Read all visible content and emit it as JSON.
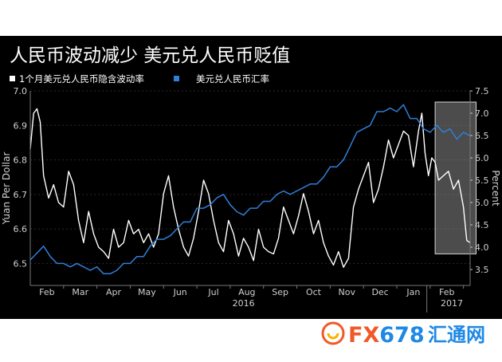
{
  "title": "人民币波动减少 美元兑人民币贬值",
  "watermark": {
    "brand": "FX678",
    "brand_cn": "汇通网",
    "colors": {
      "fx": "#f05a28",
      "num": "#1e88e5"
    }
  },
  "colors": {
    "background": "#000000",
    "volatility": "#ffffff",
    "rate": "#2f7fd8",
    "axis_text": "#cfcfcf",
    "highlight_fill": "#8a8a8a",
    "highlight_stroke": "#d8d8d8"
  },
  "chart_data": {
    "type": "line",
    "legend": [
      {
        "label": "1个月美元兑人民币隐含波动率",
        "marker": "white-square"
      },
      {
        "label": "美元兑人民币汇率",
        "marker": "blue-square"
      }
    ],
    "ylabel_left": "Yuan Per Dollar",
    "ylabel_right": "Percent",
    "y_left": {
      "range": [
        6.45,
        7.0
      ],
      "ticks": [
        "6.5",
        "6.6",
        "6.7",
        "6.8",
        "6.9",
        "7.0"
      ]
    },
    "y_right": {
      "range": [
        3.25,
        7.5
      ],
      "ticks": [
        "3.5",
        "4.0",
        "4.5",
        "5.0",
        "5.5",
        "6.0",
        "6.5",
        "7.0",
        "7.5"
      ]
    },
    "x_months": [
      "Feb",
      "Mar",
      "Apr",
      "May",
      "Jun",
      "Jul",
      "Aug",
      "Sep",
      "Oct",
      "Nov",
      "Dec",
      "Jan",
      "Feb"
    ],
    "x_years": [
      "2016",
      "2017"
    ],
    "x_range_months": [
      1,
      14.2
    ],
    "highlight_region": {
      "x_from": 13.15,
      "x_to": 14.38,
      "y_from_pct": 3.85,
      "y_to_pct": 7.25
    },
    "series": [
      {
        "name": "1个月美元兑人民币隐含波动率",
        "axis": "right",
        "x": [
          1.0,
          1.1,
          1.2,
          1.3,
          1.4,
          1.55,
          1.7,
          1.85,
          2.0,
          2.15,
          2.3,
          2.45,
          2.6,
          2.75,
          2.9,
          3.05,
          3.2,
          3.35,
          3.5,
          3.65,
          3.8,
          3.95,
          4.1,
          4.25,
          4.4,
          4.55,
          4.7,
          4.85,
          5.0,
          5.15,
          5.3,
          5.45,
          5.6,
          5.75,
          5.9,
          6.05,
          6.2,
          6.35,
          6.5,
          6.65,
          6.8,
          6.95,
          7.1,
          7.25,
          7.4,
          7.55,
          7.7,
          7.85,
          8.0,
          8.15,
          8.3,
          8.45,
          8.6,
          8.75,
          8.9,
          9.05,
          9.2,
          9.35,
          9.5,
          9.65,
          9.8,
          9.95,
          10.1,
          10.25,
          10.4,
          10.55,
          10.7,
          10.85,
          11.0,
          11.15,
          11.3,
          11.45,
          11.6,
          11.75,
          11.9,
          12.05,
          12.2,
          12.35,
          12.5,
          12.65,
          12.75,
          12.85,
          12.95,
          13.05,
          13.15,
          13.25,
          13.4,
          13.55,
          13.7,
          13.85,
          14.0,
          14.1,
          14.2
        ],
        "values": [
          6.2,
          7.0,
          7.1,
          6.8,
          5.6,
          5.1,
          5.4,
          5.0,
          4.9,
          5.7,
          5.4,
          4.6,
          4.1,
          4.8,
          4.3,
          4.0,
          3.9,
          3.75,
          4.4,
          4.0,
          4.1,
          4.6,
          4.3,
          4.4,
          4.1,
          4.3,
          4.0,
          4.3,
          5.2,
          5.6,
          4.9,
          4.4,
          4.0,
          3.8,
          4.2,
          4.8,
          5.5,
          5.2,
          4.6,
          4.1,
          3.9,
          4.6,
          4.3,
          3.8,
          4.2,
          4.0,
          3.7,
          4.4,
          4.0,
          3.9,
          3.85,
          4.2,
          4.9,
          4.6,
          4.3,
          4.7,
          5.2,
          4.8,
          4.3,
          4.6,
          4.1,
          3.8,
          3.6,
          3.9,
          3.55,
          3.75,
          4.9,
          5.3,
          5.6,
          5.9,
          5.0,
          5.3,
          5.8,
          6.4,
          6.0,
          6.3,
          6.6,
          6.5,
          5.8,
          6.6,
          7.0,
          6.1,
          5.6,
          6.0,
          5.9,
          5.5,
          5.6,
          5.7,
          5.3,
          5.5,
          4.9,
          4.15,
          4.1
        ]
      },
      {
        "name": "美元兑人民币汇率",
        "axis": "left",
        "x": [
          1.0,
          1.2,
          1.4,
          1.6,
          1.8,
          2.0,
          2.2,
          2.4,
          2.6,
          2.8,
          3.0,
          3.2,
          3.4,
          3.6,
          3.8,
          4.0,
          4.2,
          4.4,
          4.6,
          4.8,
          5.0,
          5.2,
          5.4,
          5.6,
          5.8,
          6.0,
          6.2,
          6.4,
          6.6,
          6.8,
          7.0,
          7.2,
          7.4,
          7.6,
          7.8,
          8.0,
          8.2,
          8.4,
          8.6,
          8.8,
          9.0,
          9.2,
          9.4,
          9.6,
          9.8,
          10.0,
          10.2,
          10.4,
          10.6,
          10.8,
          11.0,
          11.2,
          11.4,
          11.6,
          11.8,
          12.0,
          12.2,
          12.4,
          12.6,
          12.8,
          13.0,
          13.2,
          13.4,
          13.6,
          13.8,
          14.0,
          14.2
        ],
        "values": [
          6.51,
          6.53,
          6.55,
          6.52,
          6.5,
          6.5,
          6.49,
          6.5,
          6.49,
          6.48,
          6.49,
          6.47,
          6.47,
          6.48,
          6.5,
          6.5,
          6.52,
          6.52,
          6.55,
          6.57,
          6.57,
          6.58,
          6.6,
          6.62,
          6.62,
          6.66,
          6.66,
          6.67,
          6.69,
          6.7,
          6.67,
          6.65,
          6.64,
          6.66,
          6.66,
          6.68,
          6.68,
          6.7,
          6.71,
          6.7,
          6.71,
          6.72,
          6.73,
          6.73,
          6.75,
          6.78,
          6.78,
          6.8,
          6.84,
          6.88,
          6.89,
          6.9,
          6.94,
          6.94,
          6.95,
          6.94,
          6.96,
          6.92,
          6.92,
          6.89,
          6.88,
          6.9,
          6.88,
          6.89,
          6.86,
          6.88,
          6.87
        ]
      }
    ]
  }
}
